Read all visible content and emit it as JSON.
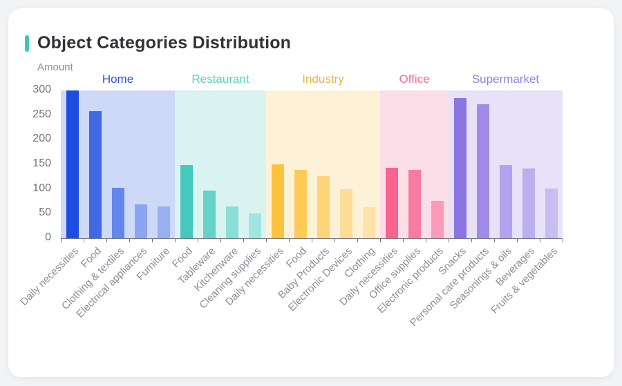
{
  "title": {
    "text": "Object Categories Distribution",
    "accent_color": "#3ec6b8"
  },
  "chart_data": {
    "type": "bar",
    "title": "Object Categories Distribution",
    "xlabel": "",
    "ylabel": "Amount",
    "ylim": [
      0,
      300
    ],
    "yticks": [
      0,
      50,
      100,
      150,
      200,
      250,
      300
    ],
    "grid": false,
    "legend_position": "none",
    "groups": [
      {
        "name": "Home",
        "label_color": "#2b50e0",
        "band_color": "#cdd9f6",
        "categories": [
          "Daily necessities",
          "Food",
          "Clothing & textiles",
          "Electrical appliances",
          "Furniture"
        ],
        "values": [
          300,
          258,
          102,
          68,
          64
        ],
        "bar_colors": [
          "#1d4ee1",
          "#4068e7",
          "#6286ec",
          "#8ba5f0",
          "#98aff1"
        ]
      },
      {
        "name": "Restaurant",
        "label_color": "#4ed4c2",
        "band_color": "#d9f3f1",
        "categories": [
          "Food",
          "Tableware",
          "Kitchenware",
          "Cleaning supplies"
        ],
        "values": [
          149,
          97,
          65,
          51
        ],
        "bar_colors": [
          "#45c8bd",
          "#66d2c9",
          "#89ded7",
          "#a0e5df"
        ]
      },
      {
        "name": "Industry",
        "label_color": "#edb041",
        "band_color": "#fdf2d8",
        "categories": [
          "Daily necessities",
          "Food",
          "Baby Products",
          "Electronic Devices",
          "Clothing"
        ],
        "values": [
          150,
          139,
          126,
          99,
          63
        ],
        "bar_colors": [
          "#fec33c",
          "#fecb57",
          "#fed478",
          "#fedd97",
          "#fee3a9"
        ]
      },
      {
        "name": "Office",
        "label_color": "#f76a9d",
        "band_color": "#fcdee9",
        "categories": [
          "Daily necessities",
          "Office supplies",
          "Electronic products"
        ],
        "values": [
          143,
          139,
          75
        ],
        "bar_colors": [
          "#f9638f",
          "#fa7ba1",
          "#fb9ab6"
        ]
      },
      {
        "name": "Supermarket",
        "label_color": "#9181e8",
        "band_color": "#e7e2f8",
        "categories": [
          "Snacks",
          "Personal care products",
          "Seasonings & oils",
          "Beverages",
          "Fruits & vegetables"
        ],
        "values": [
          285,
          272,
          149,
          141,
          101
        ],
        "bar_colors": [
          "#8d74e3",
          "#a18be8",
          "#b3a3ee",
          "#bcaff0",
          "#c8bdf3"
        ]
      }
    ]
  }
}
